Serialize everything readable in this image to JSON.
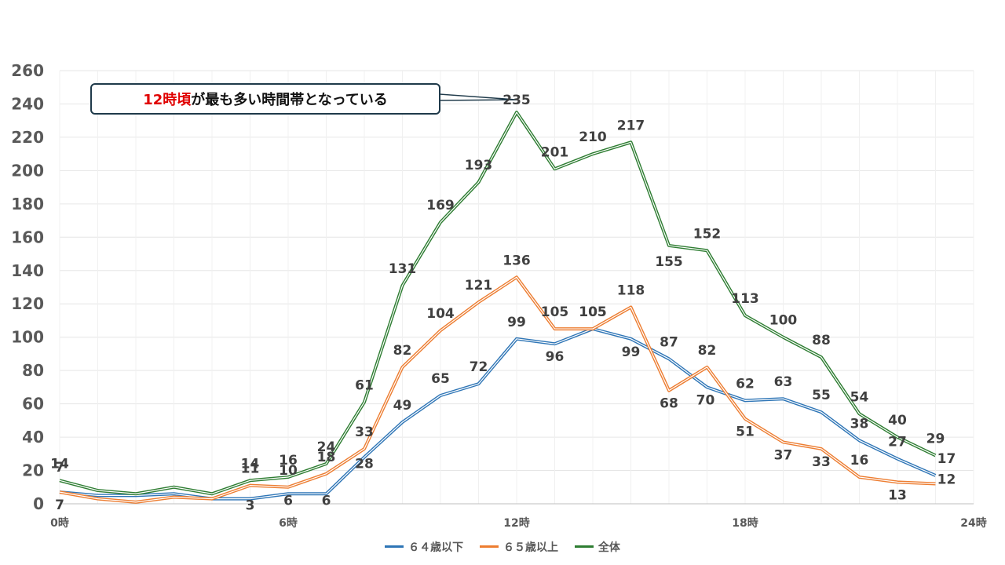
{
  "chart_data": {
    "type": "line",
    "title": "",
    "xlabel": "",
    "ylabel": "",
    "ylim": [
      0,
      260
    ],
    "yticks": [
      0,
      20,
      40,
      60,
      80,
      100,
      120,
      140,
      160,
      180,
      200,
      220,
      240,
      260
    ],
    "x": [
      0,
      1,
      2,
      3,
      4,
      5,
      6,
      7,
      8,
      9,
      10,
      11,
      12,
      13,
      14,
      15,
      16,
      17,
      18,
      19,
      20,
      21,
      22,
      23
    ],
    "xtick_labels": [
      {
        "x": 0,
        "label": "0時"
      },
      {
        "x": 6,
        "label": "6時"
      },
      {
        "x": 12,
        "label": "12時"
      },
      {
        "x": 18,
        "label": "18時"
      },
      {
        "x": 24,
        "label": "24時"
      }
    ],
    "xlim": [
      0,
      24
    ],
    "grid": true,
    "legend_position": "bottom",
    "series": [
      {
        "name": "６４歳以下",
        "color": "#2e75b6",
        "values": [
          7,
          5,
          5,
          6,
          3,
          3,
          6,
          6,
          28,
          49,
          65,
          72,
          99,
          96,
          105,
          99,
          87,
          70,
          62,
          63,
          55,
          38,
          27,
          17
        ],
        "labels": {
          "0": "7",
          "5": "3",
          "6": "6",
          "7": "6",
          "8": "28",
          "9": "49",
          "10": "65",
          "11": "72",
          "12": "99",
          "13": "96",
          "14": "105",
          "15": "99",
          "16": "87",
          "17": "70",
          "18": "62",
          "19": "63",
          "20": "55",
          "21": "38",
          "22": "27",
          "23": "17"
        }
      },
      {
        "name": "６５歳以上",
        "color": "#ed7d31",
        "values": [
          7,
          3,
          1,
          4,
          3,
          11,
          10,
          18,
          33,
          82,
          104,
          121,
          136,
          105,
          105,
          118,
          68,
          82,
          51,
          37,
          33,
          16,
          13,
          12
        ],
        "labels": {
          "0": "7",
          "5": "11",
          "6": "10",
          "7": "18",
          "8": "33",
          "9": "82",
          "10": "104",
          "11": "121",
          "12": "136",
          "13": "105",
          "14": "105",
          "15": "118",
          "16": "68",
          "17": "82",
          "18": "51",
          "19": "37",
          "20": "33",
          "21": "16",
          "22": "13",
          "23": "12"
        }
      },
      {
        "name": "全体",
        "color": "#2e7d32",
        "values": [
          14,
          8,
          6,
          10,
          6,
          14,
          16,
          24,
          61,
          131,
          169,
          193,
          235,
          201,
          210,
          217,
          155,
          152,
          113,
          100,
          88,
          54,
          40,
          29
        ],
        "labels": {
          "0": "14",
          "5": "14",
          "6": "16",
          "7": "24",
          "8": "61",
          "9": "131",
          "10": "169",
          "11": "193",
          "12": "235",
          "13": "201",
          "14": "210",
          "15": "217",
          "16": "155",
          "17": "152",
          "18": "113",
          "19": "100",
          "20": "88",
          "21": "54",
          "22": "40",
          "23": "29"
        }
      }
    ],
    "annotation": {
      "highlight": "12時頃",
      "rest": "が最も多い時間帯となっている",
      "points_to_x": 12
    }
  }
}
